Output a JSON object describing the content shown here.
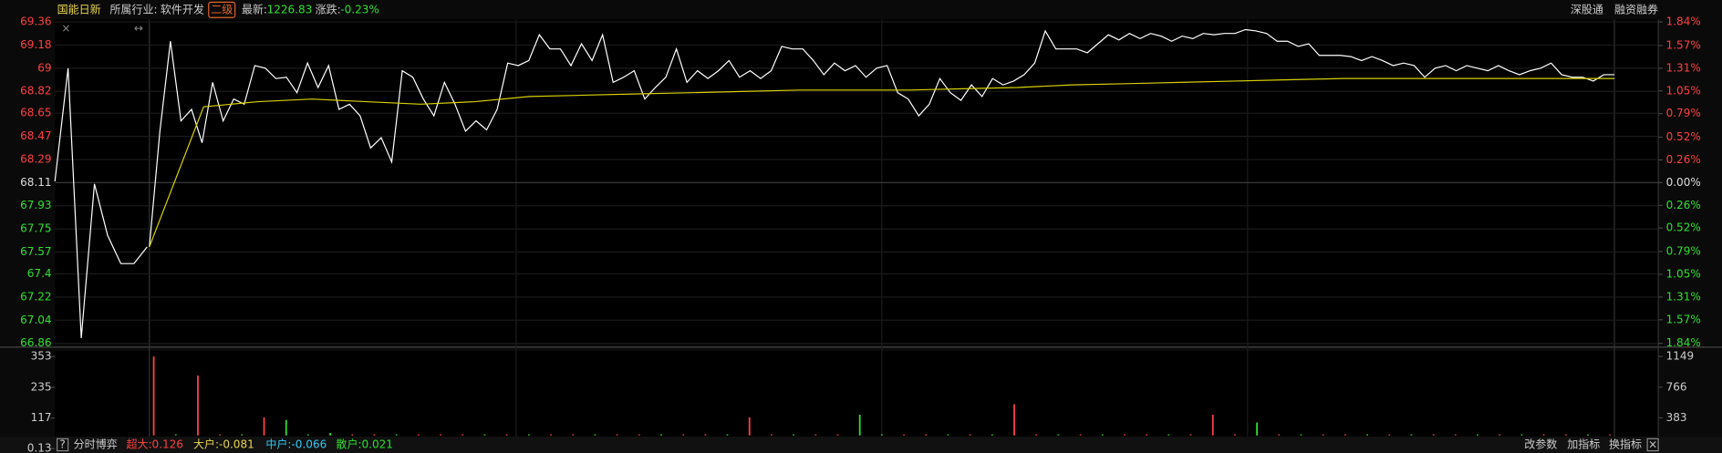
{
  "header": {
    "name": "国能日新",
    "industry_label": "所属行业:",
    "industry": "软件开发",
    "level": "二级",
    "latest_label": "最新:",
    "latest": "1226.83",
    "change_label": "涨跌:",
    "change": "-0.23%",
    "links": [
      "深股通",
      "融资融券"
    ]
  },
  "chart_data": [
    {
      "type": "line",
      "ylim": [
        66.86,
        69.36
      ],
      "yticks": [
        69.36,
        69.18,
        69.0,
        68.82,
        68.65,
        68.47,
        68.29,
        68.11,
        67.93,
        67.75,
        67.57,
        67.4,
        67.22,
        67.04,
        66.86
      ],
      "prev_close": 68.11,
      "y2lim": [
        -1.84,
        1.84
      ],
      "y2ticks": [
        {
          "value": 1.84,
          "label": "1.84%"
        },
        {
          "value": 1.57,
          "label": "1.57%"
        },
        {
          "value": 1.31,
          "label": "1.31%"
        },
        {
          "value": 1.05,
          "label": "1.05%"
        },
        {
          "value": 0.79,
          "label": "0.79%"
        },
        {
          "value": 0.52,
          "label": "0.52%"
        },
        {
          "value": 0.26,
          "label": "0.26%"
        },
        {
          "value": 0,
          "label": "0.00%"
        },
        {
          "value": -0.26,
          "label": "0.26%"
        },
        {
          "value": -0.52,
          "label": "0.52%"
        },
        {
          "value": -0.79,
          "label": "0.79%"
        },
        {
          "value": -1.05,
          "label": "1.05%"
        },
        {
          "value": -1.31,
          "label": "1.31%"
        },
        {
          "value": -1.57,
          "label": "1.57%"
        },
        {
          "value": -1.84,
          "label": "1.84%"
        }
      ],
      "up_color": "#ff4040",
      "down_color": "#2ee02e",
      "flat_color": "#dddddd",
      "auction": {
        "color": "#ffffff",
        "values": [
          68.12,
          69.0,
          66.9,
          68.1,
          67.7,
          67.48,
          67.48,
          67.61
        ]
      },
      "series": [
        {
          "color": "#ffffff",
          "values": [
            67.61,
            68.51,
            69.21,
            68.59,
            68.68,
            68.42,
            68.89,
            68.59,
            68.76,
            68.72,
            69.02,
            69.0,
            68.92,
            68.93,
            68.81,
            69.04,
            68.85,
            69.02,
            68.68,
            68.72,
            68.63,
            68.38,
            68.46,
            68.27,
            68.98,
            68.93,
            68.76,
            68.63,
            68.89,
            68.72,
            68.51,
            68.59,
            68.52,
            68.68,
            69.04,
            69.02,
            69.06,
            69.26,
            69.15,
            69.15,
            69.02,
            69.19,
            69.06,
            69.26,
            68.89,
            68.93,
            68.98,
            68.76,
            68.85,
            68.93,
            69.15,
            68.89,
            68.98,
            68.92,
            68.98,
            69.06,
            68.93,
            68.98,
            68.92,
            68.98,
            69.17,
            69.15,
            69.15,
            69.06,
            68.95,
            69.04,
            68.98,
            69.02,
            68.93,
            69.0,
            69.02,
            68.81,
            68.76,
            68.63,
            68.72,
            68.92,
            68.81,
            68.75,
            68.87,
            68.78,
            68.92,
            68.87,
            68.9,
            68.95,
            69.04,
            69.29,
            69.15,
            69.15,
            69.15,
            69.12,
            69.19,
            69.26,
            69.22,
            69.27,
            69.23,
            69.27,
            69.25,
            69.21,
            69.25,
            69.23,
            69.27,
            69.26,
            69.27,
            69.27,
            69.3,
            69.29,
            69.27,
            69.21,
            69.21,
            69.17,
            69.19,
            69.1,
            69.1,
            69.1,
            69.09,
            69.06,
            69.09,
            69.06,
            69.02,
            69.04,
            69.02,
            68.93,
            69.0,
            69.02,
            68.98,
            69.02,
            69.0,
            68.98,
            69.02,
            68.98,
            68.95,
            68.98,
            69.0,
            69.04,
            68.95,
            68.93,
            68.93,
            68.9,
            68.95,
            68.95
          ]
        },
        {
          "color": "#d8d000",
          "values": [
            67.61,
            68.7,
            68.74,
            68.76,
            68.74,
            68.72,
            68.74,
            68.78,
            68.79,
            68.8,
            68.81,
            68.82,
            68.83,
            68.83,
            68.83,
            68.84,
            68.85,
            68.87,
            68.88,
            68.89,
            68.9,
            68.91,
            68.92,
            68.92,
            68.92,
            68.92,
            68.92,
            68.92
          ]
        }
      ]
    },
    {
      "type": "bar",
      "ylim": [
        0.13,
        353
      ],
      "yticks": [
        353,
        235,
        117,
        0.13
      ],
      "y2lim": [
        0,
        1149
      ],
      "y2ticks": [
        1149,
        766,
        383
      ],
      "values": [
        353,
        40,
        280,
        30,
        35,
        120,
        110,
        40,
        60,
        45,
        55,
        25,
        15,
        20,
        30,
        15,
        25,
        40,
        20,
        30,
        25,
        15,
        20,
        35,
        20,
        25,
        30,
        120,
        20,
        15,
        25,
        20,
        130,
        40,
        25,
        20,
        15,
        25,
        20,
        170,
        25,
        20,
        15,
        20,
        25,
        15,
        20,
        20,
        130,
        20,
        100,
        30,
        20,
        25,
        15,
        20,
        25,
        20,
        30,
        20,
        15,
        20,
        25,
        15,
        30,
        20,
        15
      ],
      "colors": [
        "#ff4040",
        "#2ee02e",
        "#ff4040",
        "#ff4040",
        "#2ee02e",
        "#ff4040",
        "#2ee02e",
        "#2ee02e",
        "#2ee02e",
        "#ff4040",
        "#ff4040",
        "#2ee02e",
        "#ff4040",
        "#ff4040",
        "#ff4040",
        "#2ee02e",
        "#ff4040",
        "#2ee02e",
        "#ff4040",
        "#ff4040",
        "#2ee02e",
        "#ff4040",
        "#ff4040",
        "#2ee02e",
        "#ff4040",
        "#ff4040",
        "#2ee02e",
        "#ff4040",
        "#ff4040",
        "#2ee02e",
        "#ff4040",
        "#ff4040",
        "#2ee02e",
        "#2ee02e",
        "#ff4040",
        "#ff4040",
        "#2ee02e",
        "#ff4040",
        "#2ee02e",
        "#ff4040",
        "#ff4040",
        "#2ee02e",
        "#ff4040",
        "#2ee02e",
        "#ff4040",
        "#ff4040",
        "#2ee02e",
        "#ff4040",
        "#ff4040",
        "#ff4040",
        "#2ee02e",
        "#ff4040",
        "#2ee02e",
        "#ff4040",
        "#ff4040",
        "#2ee02e",
        "#ff4040",
        "#2ee02e",
        "#ff4040",
        "#ff4040",
        "#2ee02e",
        "#ff4040",
        "#2ee02e",
        "#ff4040",
        "#ff4040",
        "#2ee02e",
        "#ff4040"
      ]
    }
  ],
  "footer": {
    "help": "?",
    "title": "分时博弈",
    "super": "超大:0.126",
    "large": "大户:-0.081",
    "medium": "中户:-0.066",
    "retail": "散户:0.021",
    "buttons": [
      "改参数",
      "加指标",
      "换指标",
      "×"
    ]
  }
}
